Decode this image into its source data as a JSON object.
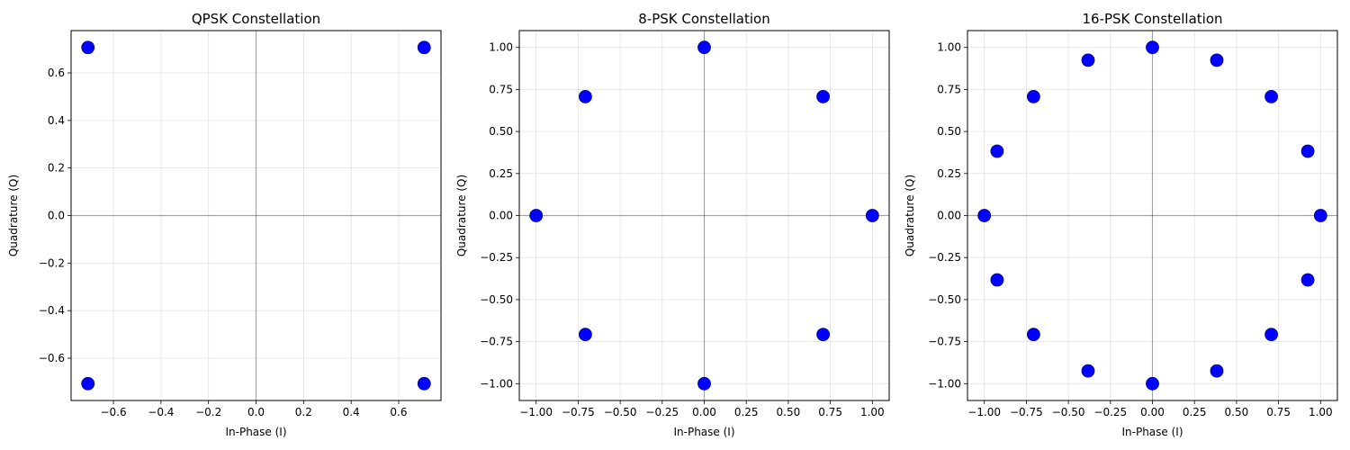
{
  "chart_data": [
    {
      "type": "scatter",
      "title": "QPSK Constellation",
      "xlabel": "In-Phase (I)",
      "ylabel": "Quadrature (Q)",
      "xlim": [
        -0.778,
        0.778
      ],
      "ylim": [
        -0.778,
        0.778
      ],
      "xticks": [
        -0.6,
        -0.4,
        -0.2,
        0.0,
        0.2,
        0.4,
        0.6
      ],
      "yticks": [
        -0.6,
        -0.4,
        -0.2,
        0.0,
        0.2,
        0.4,
        0.6
      ],
      "xtick_labels": [
        "−0.6",
        "−0.4",
        "−0.2",
        "0.0",
        "0.2",
        "0.4",
        "0.6"
      ],
      "ytick_labels": [
        "−0.6",
        "−0.4",
        "−0.2",
        "0.0",
        "0.2",
        "0.4",
        "0.6"
      ],
      "grid": true,
      "marker_color": "#0000ff",
      "points": [
        {
          "x": 0.7071,
          "y": 0.7071
        },
        {
          "x": -0.7071,
          "y": 0.7071
        },
        {
          "x": -0.7071,
          "y": -0.7071
        },
        {
          "x": 0.7071,
          "y": -0.7071
        }
      ]
    },
    {
      "type": "scatter",
      "title": "8-PSK Constellation",
      "xlabel": "In-Phase (I)",
      "ylabel": "Quadrature (Q)",
      "xlim": [
        -1.1,
        1.1
      ],
      "ylim": [
        -1.1,
        1.1
      ],
      "xticks": [
        -1.0,
        -0.75,
        -0.5,
        -0.25,
        0.0,
        0.25,
        0.5,
        0.75,
        1.0
      ],
      "yticks": [
        -1.0,
        -0.75,
        -0.5,
        -0.25,
        0.0,
        0.25,
        0.5,
        0.75,
        1.0
      ],
      "xtick_labels": [
        "−1.00",
        "−0.75",
        "−0.50",
        "−0.25",
        "0.00",
        "0.25",
        "0.50",
        "0.75",
        "1.00"
      ],
      "ytick_labels": [
        "−1.00",
        "−0.75",
        "−0.50",
        "−0.25",
        "0.00",
        "0.25",
        "0.50",
        "0.75",
        "1.00"
      ],
      "grid": true,
      "marker_color": "#0000ff",
      "points": [
        {
          "x": 1.0,
          "y": 0.0
        },
        {
          "x": 0.7071,
          "y": 0.7071
        },
        {
          "x": 0.0,
          "y": 1.0
        },
        {
          "x": -0.7071,
          "y": 0.7071
        },
        {
          "x": -1.0,
          "y": 0.0
        },
        {
          "x": -0.7071,
          "y": -0.7071
        },
        {
          "x": 0.0,
          "y": -1.0
        },
        {
          "x": 0.7071,
          "y": -0.7071
        }
      ]
    },
    {
      "type": "scatter",
      "title": "16-PSK Constellation",
      "xlabel": "In-Phase (I)",
      "ylabel": "Quadrature (Q)",
      "xlim": [
        -1.1,
        1.1
      ],
      "ylim": [
        -1.1,
        1.1
      ],
      "xticks": [
        -1.0,
        -0.75,
        -0.5,
        -0.25,
        0.0,
        0.25,
        0.5,
        0.75,
        1.0
      ],
      "yticks": [
        -1.0,
        -0.75,
        -0.5,
        -0.25,
        0.0,
        0.25,
        0.5,
        0.75,
        1.0
      ],
      "xtick_labels": [
        "−1.00",
        "−0.75",
        "−0.50",
        "−0.25",
        "0.00",
        "0.25",
        "0.50",
        "0.75",
        "1.00"
      ],
      "ytick_labels": [
        "−1.00",
        "−0.75",
        "−0.50",
        "−0.25",
        "0.00",
        "0.25",
        "0.50",
        "0.75",
        "1.00"
      ],
      "grid": true,
      "marker_color": "#0000ff",
      "points": [
        {
          "x": 1.0,
          "y": 0.0
        },
        {
          "x": 0.9239,
          "y": 0.3827
        },
        {
          "x": 0.7071,
          "y": 0.7071
        },
        {
          "x": 0.3827,
          "y": 0.9239
        },
        {
          "x": 0.0,
          "y": 1.0
        },
        {
          "x": -0.3827,
          "y": 0.9239
        },
        {
          "x": -0.7071,
          "y": 0.7071
        },
        {
          "x": -0.9239,
          "y": 0.3827
        },
        {
          "x": -1.0,
          "y": 0.0
        },
        {
          "x": -0.9239,
          "y": -0.3827
        },
        {
          "x": -0.7071,
          "y": -0.7071
        },
        {
          "x": -0.3827,
          "y": -0.9239
        },
        {
          "x": 0.0,
          "y": -1.0
        },
        {
          "x": 0.3827,
          "y": -0.9239
        },
        {
          "x": 0.7071,
          "y": -0.7071
        },
        {
          "x": 0.9239,
          "y": -0.3827
        }
      ]
    }
  ]
}
